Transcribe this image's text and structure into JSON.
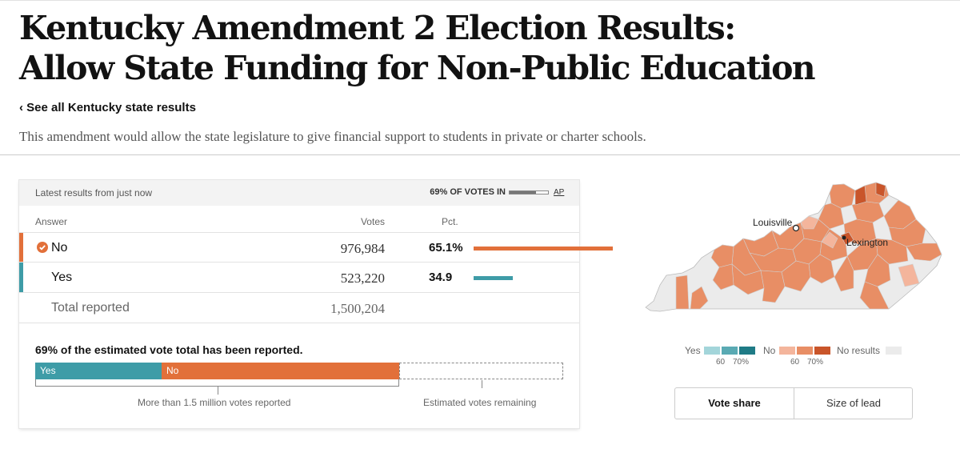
{
  "headline": "Kentucky Amendment 2 Election Results: Allow State Funding for Non-Public Education",
  "back_link": "‹ See all Kentucky state results",
  "description": "This amendment would allow the state legislature to give financial support to students in private or charter schools.",
  "results": {
    "latest": "Latest results from just now",
    "votes_in": "69% OF VOTES IN",
    "votes_in_fraction": 0.69,
    "source": "AP",
    "columns": {
      "answer": "Answer",
      "votes": "Votes",
      "pct": "Pct."
    },
    "rows": [
      {
        "answer": "No",
        "votes": "976,984",
        "pct": "65.1%",
        "share": 0.651,
        "winner": true,
        "color": "#e2703a"
      },
      {
        "answer": "Yes",
        "votes": "523,220",
        "pct": "34.9",
        "share": 0.349,
        "winner": false,
        "color": "#3e9ca7"
      }
    ],
    "total": {
      "label": "Total reported",
      "votes": "1,500,204"
    }
  },
  "estimate": {
    "title": "69% of the estimated vote total has been reported.",
    "yes_label": "Yes",
    "no_label": "No",
    "yes_fraction": 0.24,
    "no_fraction": 0.45,
    "reported_fraction": 0.69,
    "reported_caption": "More than 1.5 million votes reported",
    "remaining_caption": "Estimated votes remaining"
  },
  "map": {
    "cities": [
      "Louisville",
      "Lexington"
    ],
    "legend": {
      "yes_label": "Yes",
      "no_label": "No",
      "no_results_label": "No results",
      "tick_60": "60",
      "tick_70": "70%",
      "yes_colors": [
        "#a3d5da",
        "#5aaab3",
        "#1f7b86"
      ],
      "no_colors": [
        "#f4b59c",
        "#e88e65",
        "#c9552a"
      ],
      "no_results_color": "#ebebeb"
    },
    "tabs": [
      "Vote share",
      "Size of lead"
    ],
    "active_tab": "Vote share"
  }
}
